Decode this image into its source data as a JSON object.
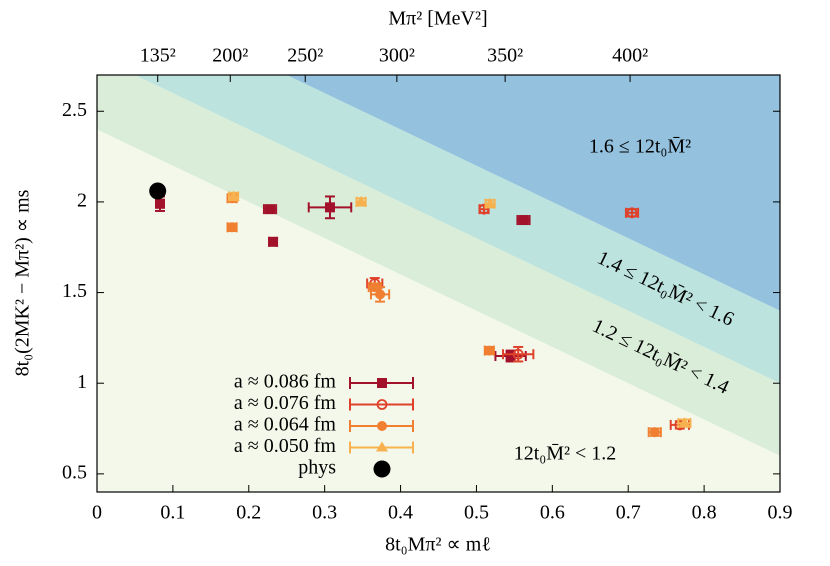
{
  "chart_data": {
    "type": "scatter",
    "xlabel": "8t₀Mπ² ∝ mℓ",
    "ylabel": "8t₀(2MK² − Mπ²) ∝ ms",
    "x2label": "Mπ² [MeV²]",
    "xlim": [
      0,
      0.9
    ],
    "ylim": [
      0.4,
      2.7
    ],
    "xticks": [
      0,
      0.1,
      0.2,
      0.3,
      0.4,
      0.5,
      0.6,
      0.7,
      0.8,
      0.9
    ],
    "yticks": [
      0.5,
      1,
      1.5,
      2,
      2.5
    ],
    "x2lim": [
      0,
      205000
    ],
    "x2ticks": [
      {
        "value": 18225,
        "label": "135²"
      },
      {
        "value": 40000,
        "label": "200²"
      },
      {
        "value": 62500,
        "label": "250²"
      },
      {
        "value": 90000,
        "label": "300²"
      },
      {
        "value": 122500,
        "label": "350²"
      },
      {
        "value": 160000,
        "label": "400²"
      }
    ],
    "regions": [
      {
        "label": "12t₀M̄² < 1.2",
        "upper": 1.2,
        "color": "#f3f8ea"
      },
      {
        "label": "1.2 ≤ 12t₀M̄² < 1.4",
        "lower": 1.2,
        "upper": 1.4,
        "color": "#d9edd8"
      },
      {
        "label": "1.4 ≤ 12t₀M̄² < 1.6",
        "lower": 1.4,
        "upper": 1.6,
        "color": "#bce3dd"
      },
      {
        "label": "1.6 ≤ 12t₀M̄²",
        "lower": 1.6,
        "color": "#93c1de"
      }
    ],
    "series": [
      {
        "name": "a ≈ 0.086 fm",
        "color": "#a3122b",
        "marker": "square",
        "x": [
          0.083,
          0.228,
          0.232,
          0.307,
          0.562,
          0.545
        ],
        "y": [
          1.99,
          1.96,
          1.78,
          1.97,
          1.9,
          1.15
        ],
        "xerr": [
          0.004,
          0.008,
          0.005,
          0.028,
          0.008,
          0.02
        ],
        "yerr": [
          0.04,
          0.02,
          0.02,
          0.06,
          0.02,
          0.03
        ]
      },
      {
        "name": "a ≈ 0.076 fm",
        "color": "#e0412a",
        "marker": "open-circle",
        "x": [
          0.705,
          0.366,
          0.555,
          0.768,
          0.51
        ],
        "y": [
          1.94,
          1.55,
          1.16,
          0.77,
          1.96
        ],
        "xerr": [
          0.008,
          0.01,
          0.02,
          0.012,
          0.006
        ],
        "yerr": [
          0.02,
          0.03,
          0.04,
          0.02,
          0.02
        ]
      },
      {
        "name": "a ≈ 0.064 fm",
        "color": "#f07f31",
        "marker": "circle",
        "x": [
          0.373,
          0.366,
          0.517,
          0.735,
          0.178,
          0.178
        ],
        "y": [
          1.49,
          1.53,
          1.18,
          0.73,
          1.86,
          2.02
        ],
        "xerr": [
          0.012,
          0.008,
          0.006,
          0.008,
          0.006,
          0.006
        ],
        "yerr": [
          0.04,
          0.02,
          0.02,
          0.02,
          0.02,
          0.02
        ]
      },
      {
        "name": "a ≈ 0.050 fm",
        "color": "#f7b24f",
        "marker": "triangle",
        "x": [
          0.348,
          0.518,
          0.774,
          0.18
        ],
        "y": [
          2.0,
          1.99,
          0.78,
          2.03
        ],
        "xerr": [
          0.006,
          0.006,
          0.008,
          0.006
        ],
        "yerr": [
          0.02,
          0.02,
          0.02,
          0.02
        ]
      },
      {
        "name": "phys",
        "color": "#000000",
        "marker": "big-circle",
        "x": [
          0.08
        ],
        "y": [
          2.06
        ]
      }
    ]
  }
}
